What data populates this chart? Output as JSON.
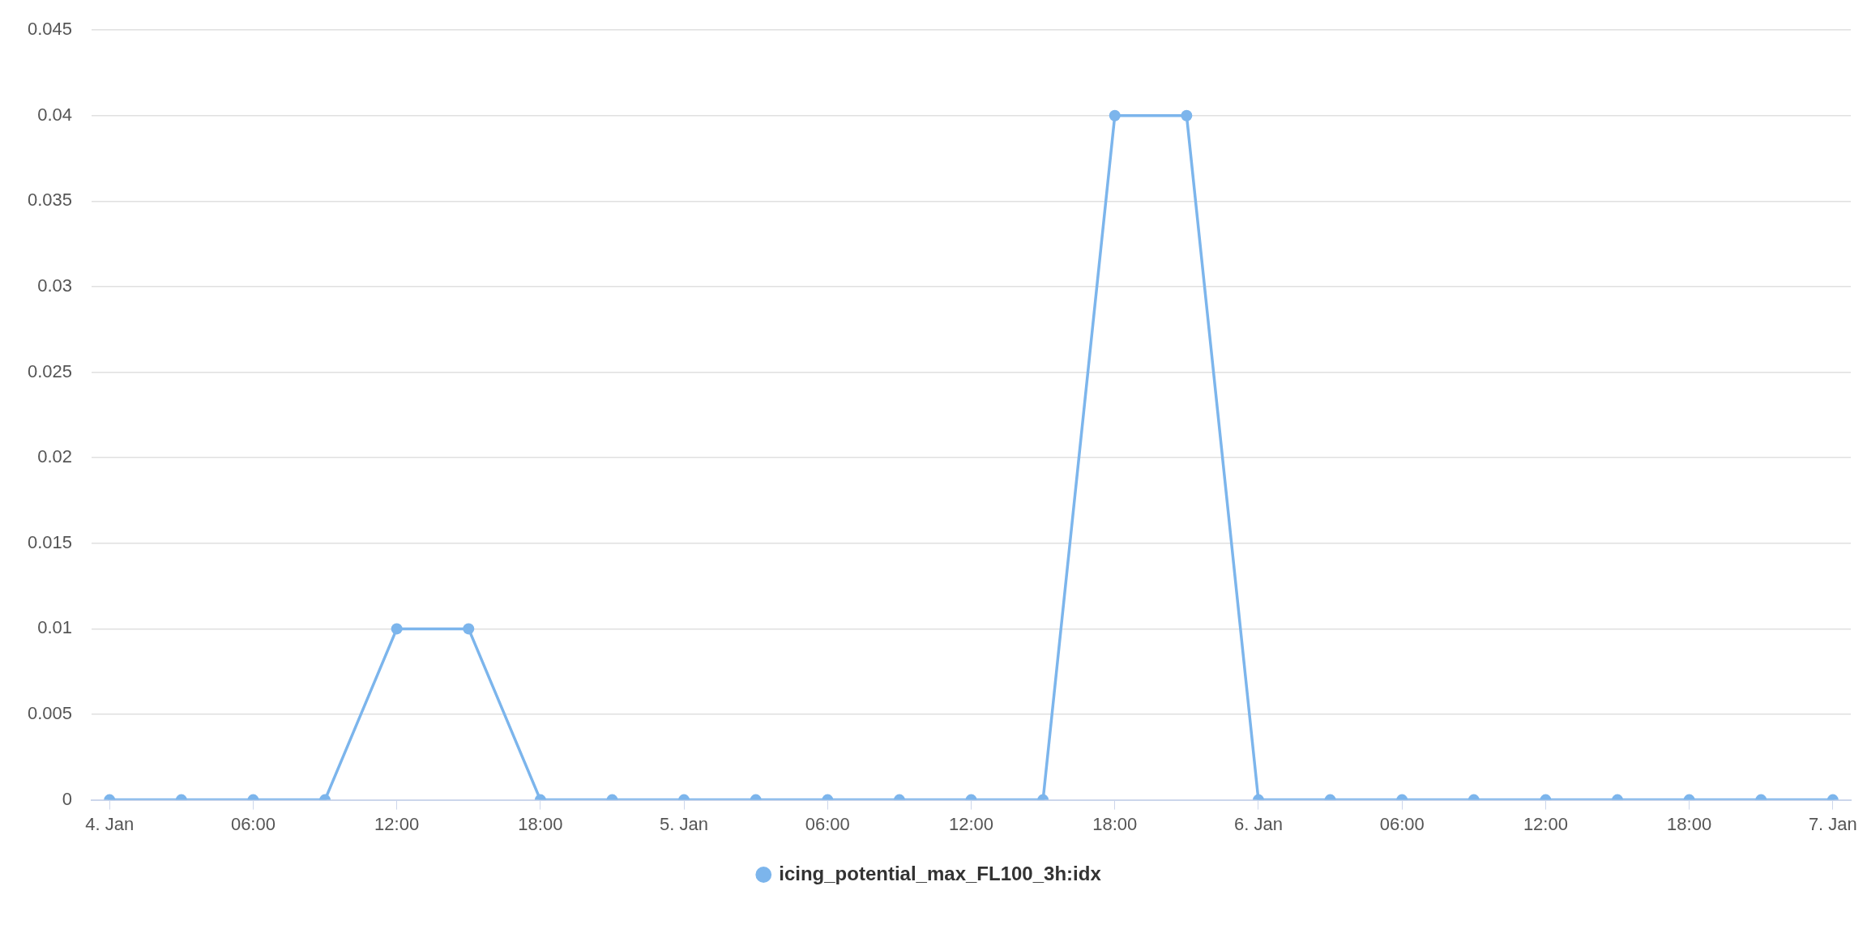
{
  "chart_data": {
    "type": "line",
    "x": [
      "--01-04T00:00",
      "--01-04T03:00",
      "--01-04T06:00",
      "--01-04T09:00",
      "--01-04T12:00",
      "--01-04T15:00",
      "--01-04T18:00",
      "--01-04T21:00",
      "--01-05T00:00",
      "--01-05T03:00",
      "--01-05T06:00",
      "--01-05T09:00",
      "--01-05T12:00",
      "--01-05T15:00",
      "--01-05T18:00",
      "--01-05T21:00",
      "--01-06T00:00",
      "--01-06T03:00",
      "--01-06T06:00",
      "--01-06T09:00",
      "--01-06T12:00",
      "--01-06T15:00",
      "--01-06T18:00",
      "--01-06T21:00",
      "--01-07T00:00"
    ],
    "series": [
      {
        "name": "icing_potential_max_FL100_3h:idx",
        "color": "#7cb5ec",
        "values": [
          0,
          0,
          0,
          0,
          0.01,
          0.01,
          0,
          0,
          0,
          0,
          0,
          0,
          0,
          0,
          0.04,
          0.04,
          0,
          0,
          0,
          0,
          0,
          0,
          0,
          0,
          0
        ]
      }
    ],
    "xlim": [
      "--01-03T23:15",
      "--01-07T00:45"
    ],
    "xticks": [
      {
        "value": "--01-04T00:00",
        "label": "4. Jan"
      },
      {
        "value": "--01-04T06:00",
        "label": "06:00"
      },
      {
        "value": "--01-04T12:00",
        "label": "12:00"
      },
      {
        "value": "--01-04T18:00",
        "label": "18:00"
      },
      {
        "value": "--01-05T00:00",
        "label": "5. Jan"
      },
      {
        "value": "--01-05T06:00",
        "label": "06:00"
      },
      {
        "value": "--01-05T12:00",
        "label": "12:00"
      },
      {
        "value": "--01-05T18:00",
        "label": "18:00"
      },
      {
        "value": "--01-06T00:00",
        "label": "6. Jan"
      },
      {
        "value": "--01-06T06:00",
        "label": "06:00"
      },
      {
        "value": "--01-06T12:00",
        "label": "12:00"
      },
      {
        "value": "--01-06T18:00",
        "label": "18:00"
      },
      {
        "value": "--01-07T00:00",
        "label": "7. Jan"
      }
    ],
    "ylim": [
      0,
      0.045
    ],
    "yticks": [
      0,
      0.005,
      0.01,
      0.015,
      0.02,
      0.025,
      0.03,
      0.035,
      0.04,
      0.045
    ],
    "grid": "y",
    "legend": "bottom",
    "marker": "circle",
    "line_style": "solid"
  }
}
